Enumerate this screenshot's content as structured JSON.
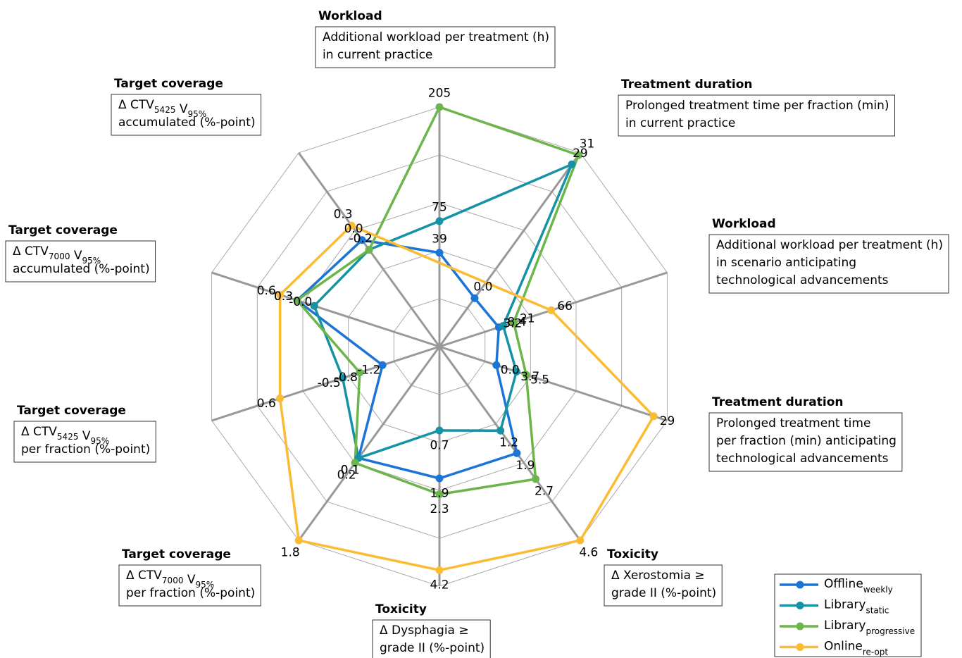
{
  "chart_data": {
    "type": "radar",
    "rings": 5,
    "axes": [
      {
        "title": "Workload",
        "lines": [
          [
            {
              "t": "Additional workload per treatment (h)"
            }
          ],
          [
            {
              "t": " in current practice"
            }
          ]
        ],
        "range": [
          -68,
          205
        ]
      },
      {
        "title": "Treatment duration",
        "lines": [
          [
            {
              "t": "Prolonged treatment time per fraction (min)"
            }
          ],
          [
            {
              "t": " in current practice"
            }
          ]
        ],
        "range": [
          -10.5,
          31.5
        ]
      },
      {
        "title": "Workload",
        "lines": [
          [
            {
              "t": "Additional workload per treatment (h)"
            }
          ],
          [
            {
              "t": " in scenario anticipating"
            }
          ],
          [
            {
              "t": " technological advancements"
            }
          ]
        ],
        "range": [
          -68,
          205
        ]
      },
      {
        "title": "Treatment duration",
        "lines": [
          [
            {
              "t": "Prolonged treatment time"
            }
          ],
          [
            {
              "t": " per fraction (min) anticipating"
            }
          ],
          [
            {
              "t": " technological advancements"
            }
          ]
        ],
        "range": [
          -10.5,
          31.5
        ]
      },
      {
        "title": "Toxicity",
        "lines": [
          [
            {
              "t": "Δ Xerostomia ≥"
            }
          ],
          [
            {
              "t": " grade II (%-point)"
            }
          ]
        ],
        "range": [
          -1.4,
          4.6
        ]
      },
      {
        "title": "Toxicity",
        "lines": [
          [
            {
              "t": "Δ Dysphagia ≥"
            }
          ],
          [
            {
              "t": " grade II (%-point)"
            }
          ]
        ],
        "range": [
          -1.4,
          4.6
        ]
      },
      {
        "title": "Target coverage",
        "lines": [
          [
            {
              "t": "Δ CTV"
            },
            {
              "sub": "7000"
            },
            {
              "t": " V"
            },
            {
              "sub": "95%"
            }
          ],
          [
            {
              "t": " per fraction (%-point)"
            }
          ]
        ],
        "range": [
          -2.2,
          1.8
        ]
      },
      {
        "title": "Target coverage",
        "lines": [
          [
            {
              "t": "Δ CTV"
            },
            {
              "sub": "5425"
            },
            {
              "t": " V"
            },
            {
              "sub": "95%"
            }
          ],
          [
            {
              "t": " per fraction (%-point)"
            }
          ]
        ],
        "range": [
          -2.2,
          1.8
        ]
      },
      {
        "title": "Target coverage",
        "lines": [
          [
            {
              "t": "Δ CTV"
            },
            {
              "sub": "7000"
            },
            {
              "t": " V"
            },
            {
              "sub": "95%"
            }
          ],
          [
            {
              "t": " accumulated (%-point)"
            }
          ]
        ],
        "range": [
          -2.2,
          1.8
        ]
      },
      {
        "title": "Target coverage",
        "lines": [
          [
            {
              "t": "Δ CTV"
            },
            {
              "sub": "5425"
            },
            {
              "t": " V"
            },
            {
              "sub": "95%"
            }
          ],
          [
            {
              "t": " accumulated (%-point)"
            }
          ]
        ],
        "range": [
          -2.2,
          1.8
        ]
      }
    ],
    "series": [
      {
        "name": "Offline",
        "subscript": "weekly",
        "color": "#1b74d6",
        "values": [
          39,
          0.0,
          3.2,
          0.0,
          1.9,
          1.9,
          0.1,
          -1.2,
          0.3,
          0.0
        ],
        "value_labels": [
          "39",
          "0.0",
          "3.2",
          "0.0",
          "1.9",
          "1.9",
          "0.1",
          "-1.2",
          "0.3",
          "0.0"
        ]
      },
      {
        "name": "Library",
        "subscript": "static",
        "color": "#1592a4",
        "values": [
          75,
          29,
          8.4,
          3.7,
          1.2,
          0.7,
          0.1,
          -0.5,
          -0.0,
          -0.2
        ],
        "value_labels": [
          "75",
          "29",
          "8.4",
          "3.7",
          "1.2",
          "0.7",
          "0.1",
          "-0.5",
          "-0.0",
          "-0.2"
        ]
      },
      {
        "name": "Library",
        "subscript": "progressive",
        "color": "#6cb54b",
        "values": [
          205,
          31,
          21,
          5.5,
          2.7,
          2.3,
          0.2,
          -0.8,
          0.3,
          -0.2
        ],
        "value_labels": [
          "205",
          "31",
          "21",
          "5.5",
          "2.7",
          "2.3",
          "0.2",
          "-0.8",
          "0.3",
          "-0.2"
        ]
      },
      {
        "name": "Online",
        "subscript": "re-opt",
        "color": "#fbbb33",
        "values": [
          null,
          null,
          66,
          29,
          4.6,
          4.2,
          1.8,
          0.6,
          0.6,
          0.3
        ],
        "value_labels": [
          null,
          null,
          "66",
          "29",
          "4.6",
          "4.2",
          "1.8",
          "0.6",
          "0.6",
          "0.3"
        ]
      }
    ]
  }
}
